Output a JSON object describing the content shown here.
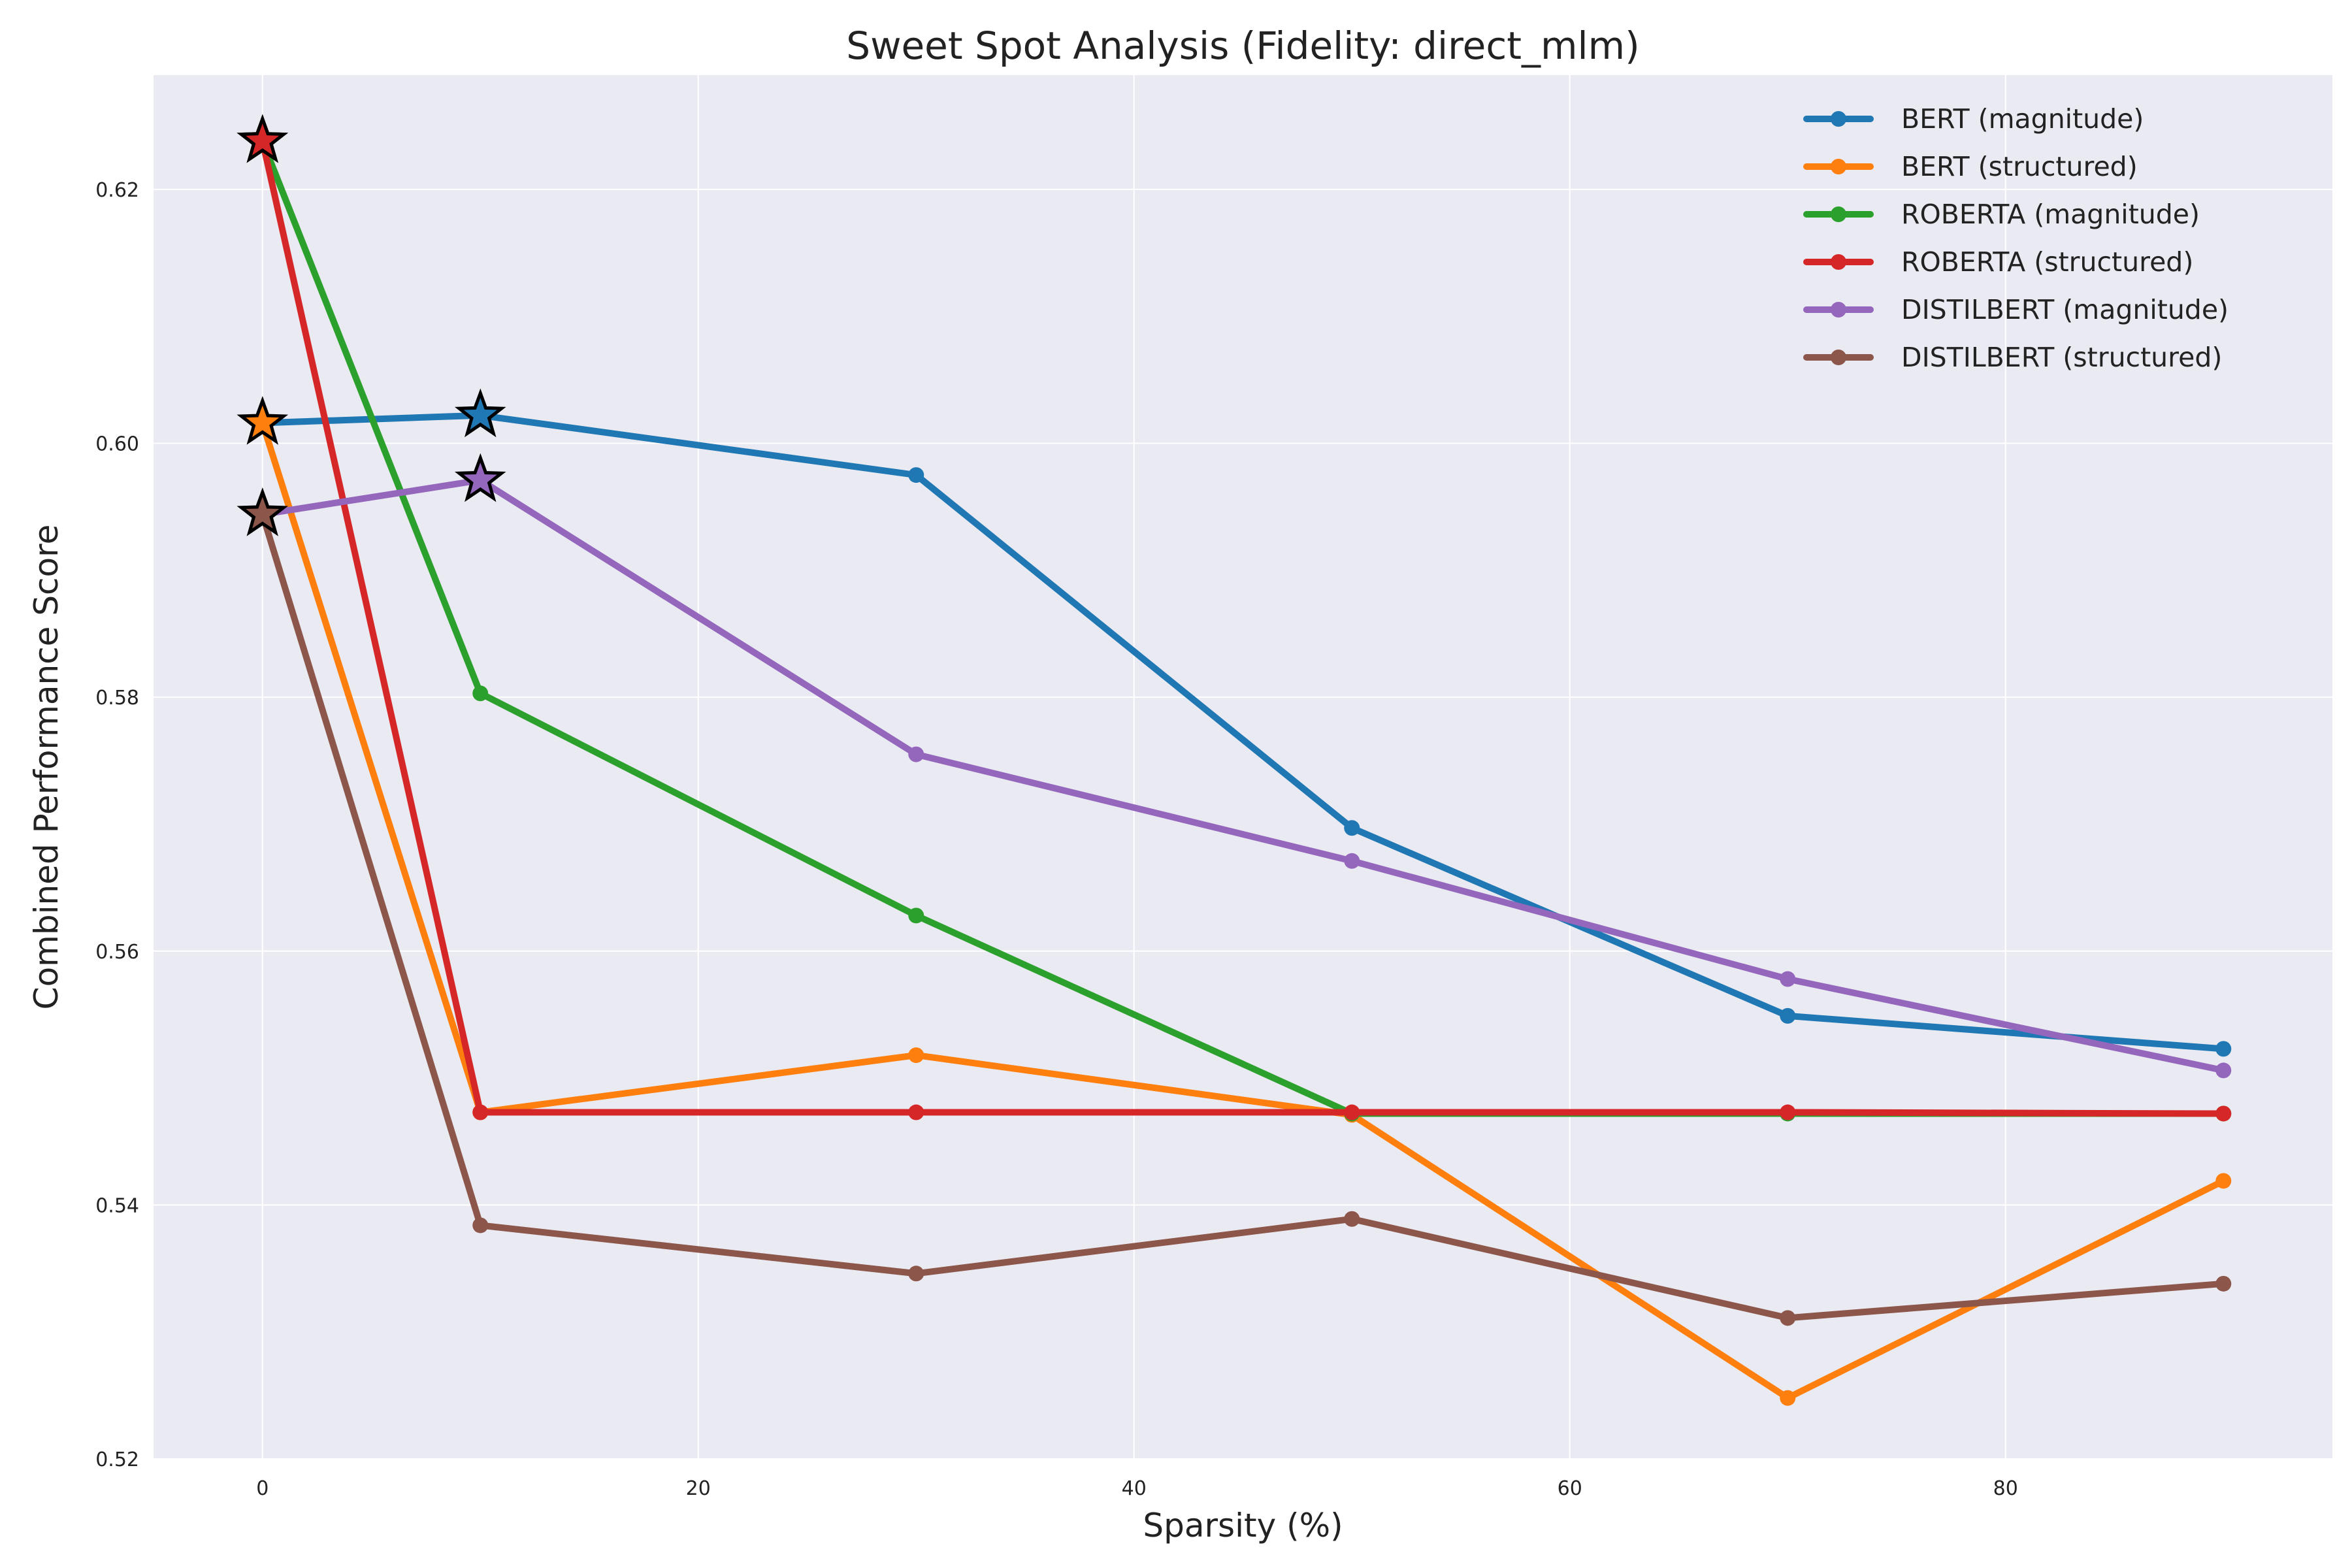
{
  "chart_data": {
    "type": "line",
    "title": "Sweet Spot Analysis (Fidelity: direct_mlm)",
    "xlabel": "Sparsity (%)",
    "ylabel": "Combined Performance Score",
    "xlim": [
      -5,
      95
    ],
    "ylim": [
      0.52,
      0.629
    ],
    "xticks": [
      0,
      20,
      40,
      60,
      80
    ],
    "yticks": [
      0.52,
      0.54,
      0.56,
      0.58,
      0.6,
      0.62
    ],
    "grid": true,
    "legend_position": "top-right",
    "x": [
      0,
      10,
      30,
      50,
      70,
      90
    ],
    "series": [
      {
        "name": "BERT (magnitude)",
        "color": "#1f77b4",
        "values": [
          0.6016,
          0.6022,
          0.5975,
          0.5697,
          0.5549,
          0.5523
        ],
        "best_index": 1
      },
      {
        "name": "BERT (structured)",
        "color": "#ff7f0e",
        "values": [
          0.6016,
          0.5473,
          0.5518,
          0.5471,
          0.5248,
          0.5419
        ],
        "best_index": 0
      },
      {
        "name": "ROBERTA (magnitude)",
        "color": "#2ca02c",
        "values": [
          0.6238,
          0.5803,
          0.5628,
          0.5472,
          0.5472,
          0.5472
        ],
        "best_index": 0
      },
      {
        "name": "ROBERTA (structured)",
        "color": "#d62728",
        "values": [
          0.6238,
          0.5473,
          0.5473,
          0.5473,
          0.5473,
          0.5472
        ],
        "best_index": 0
      },
      {
        "name": "DISTILBERT (magnitude)",
        "color": "#9467bd",
        "values": [
          0.5944,
          0.5971,
          0.5755,
          0.5671,
          0.5578,
          0.5506
        ],
        "best_index": 1
      },
      {
        "name": "DISTILBERT (structured)",
        "color": "#8c564b",
        "values": [
          0.5944,
          0.5384,
          0.5346,
          0.5389,
          0.5311,
          0.5338
        ],
        "best_index": 0
      }
    ],
    "colors": {
      "plot_background": "#eaeaf2",
      "grid": "#ffffff",
      "marker_edge": "#000000"
    }
  }
}
